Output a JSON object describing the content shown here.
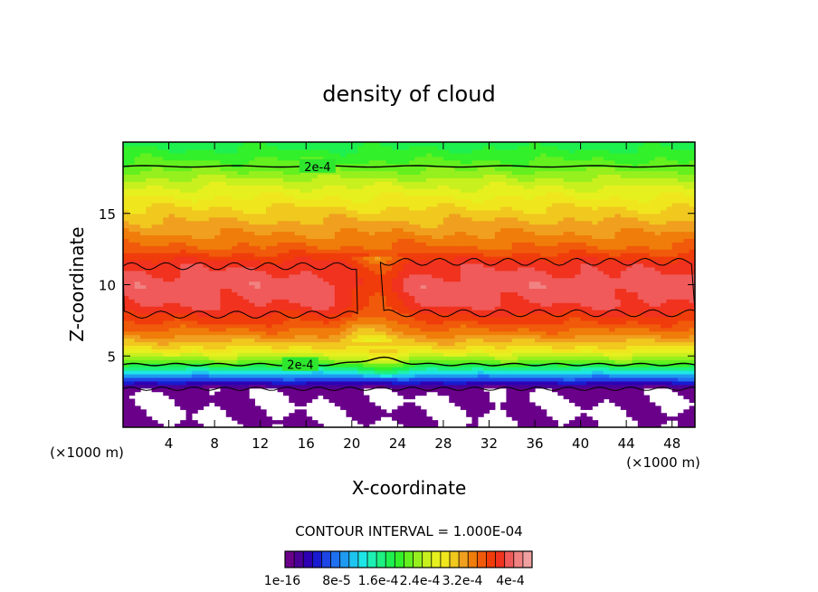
{
  "chart_data": {
    "type": "heatmap",
    "title": "density of cloud",
    "xlabel": "X-coordinate",
    "ylabel": "Z-coordinate",
    "x_unit": "(×1000 m)",
    "xlim": [
      0,
      50
    ],
    "ylim": [
      0,
      20
    ],
    "x_ticks": [
      4,
      8,
      12,
      16,
      20,
      24,
      28,
      32,
      36,
      40,
      44,
      48
    ],
    "y_ticks": [
      5,
      10,
      15
    ],
    "contour_interval_label": "CONTOUR INTERVAL = 1.000E-04",
    "contour_labels": [
      {
        "text": "2e-4",
        "x": 17,
        "z": 18.3
      },
      {
        "text": "2e-4",
        "x": 15.5,
        "z": 4.4
      }
    ],
    "colorbar": {
      "tick_labels": [
        "1e-16",
        "8e-5",
        "1.6e-4",
        "2.4e-4",
        "3.2e-4",
        "4e-4"
      ],
      "tick_values": [
        1e-16,
        8e-05,
        0.00016,
        0.00024,
        0.00032,
        0.0004
      ],
      "colors": [
        "#6a008a",
        "#4a0096",
        "#2e00b4",
        "#1a1ad0",
        "#1e46e6",
        "#1e70f0",
        "#1e9af0",
        "#1ec4f0",
        "#1ee6e6",
        "#1ef0b4",
        "#1ef082",
        "#1ef050",
        "#32f02a",
        "#64f01e",
        "#96f01e",
        "#c8f01e",
        "#e6f01e",
        "#f0e61e",
        "#f0c81e",
        "#f0a01e",
        "#f07d0a",
        "#f05a0a",
        "#f03c0a",
        "#f0321e",
        "#f05a5a",
        "#f08282",
        "#f0a0a0"
      ]
    },
    "profile": [
      {
        "z": 1.5,
        "value": 0.0
      },
      {
        "z": 2.0,
        "value": 0.0
      },
      {
        "z": 2.7,
        "value": 3e-06
      },
      {
        "z": 3.0,
        "value": 3e-05
      },
      {
        "z": 3.5,
        "value": 8e-05
      },
      {
        "z": 4.0,
        "value": 0.00014
      },
      {
        "z": 4.6,
        "value": 0.0002
      },
      {
        "z": 5.5,
        "value": 0.00026
      },
      {
        "z": 6.5,
        "value": 0.0003
      },
      {
        "z": 7.5,
        "value": 0.00033
      },
      {
        "z": 8.5,
        "value": 0.000355
      },
      {
        "z": 10.0,
        "value": 0.000365
      },
      {
        "z": 11.5,
        "value": 0.00035
      },
      {
        "z": 12.5,
        "value": 0.000315
      },
      {
        "z": 14.0,
        "value": 0.00029
      },
      {
        "z": 15.5,
        "value": 0.000265
      },
      {
        "z": 17.0,
        "value": 0.000235
      },
      {
        "z": 18.3,
        "value": 0.0002
      },
      {
        "z": 20.0,
        "value": 0.00017
      }
    ],
    "grid": false,
    "legend": "bottom"
  }
}
